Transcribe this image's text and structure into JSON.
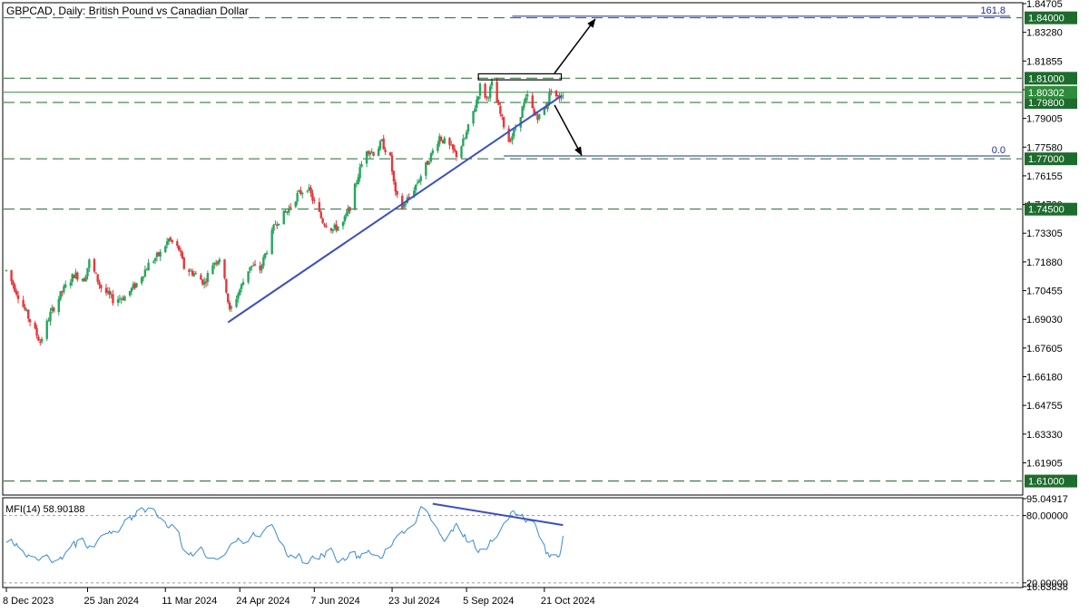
{
  "title": "GBPCAD, Daily:  British Pound vs Canadian Dollar",
  "colors": {
    "bull": "#26a65b",
    "bear": "#e8363b",
    "trendline": "#3b4fc4",
    "level_line": "#1e6b2e",
    "tag_bg": "#1e6b2e",
    "fib_line": "#1f2d9c",
    "mfi_line": "#3a8ad8",
    "current_price_line": "#2e8b3c"
  },
  "chart_data": [
    {
      "type": "candlestick",
      "symbol": "GBPCAD",
      "timeframe": "Daily",
      "description": "British Pound vs Canadian Dollar",
      "ylim": [
        1.6035,
        1.84705
      ],
      "y_tick_labels": [
        "1.84705",
        "1.83280",
        "1.81855",
        "1.80430",
        "1.79005",
        "1.77580",
        "1.76155",
        "1.74730",
        "1.73305",
        "1.71880",
        "1.70455",
        "1.69030",
        "1.67605",
        "1.66180",
        "1.64755",
        "1.63330",
        "1.61905"
      ],
      "x_tick_labels": [
        "8 Dec 2023",
        "25 Jan 2024",
        "11 Mar 2024",
        "24 Apr 2024",
        "7 Jun 2024",
        "23 Jul 2024",
        "5 Sep 2024",
        "21 Oct 2024"
      ],
      "horizontal_levels": [
        {
          "value": 1.84,
          "label": "1.84000"
        },
        {
          "value": 1.81,
          "label": "1.81000"
        },
        {
          "value": 1.798,
          "label": "1.79800"
        },
        {
          "value": 1.77,
          "label": "1.77000"
        },
        {
          "value": 1.745,
          "label": "1.74500"
        },
        {
          "value": 1.61,
          "label": "1.61000"
        }
      ],
      "current_price": {
        "value": 1.80302,
        "label": "1.80302"
      },
      "fibonacci": [
        {
          "label": "161.8",
          "value": 1.8408
        },
        {
          "label": "0.0",
          "value": 1.7714
        }
      ],
      "trendline": {
        "from": {
          "date": "2024-04-17",
          "price": 1.6888
        },
        "to": {
          "date": "2024-10-31",
          "price": 1.8012
        }
      },
      "range_box": {
        "from_date": "2024-09-12",
        "to_date": "2024-10-31",
        "low": 1.8092,
        "high": 1.8122
      },
      "arrows": [
        {
          "direction": "up",
          "from": {
            "date": "2024-10-27",
            "price": 1.8125
          },
          "to": {
            "date": "2024-11-20",
            "price": 1.8393
          }
        },
        {
          "direction": "down",
          "from": {
            "date": "2024-10-27",
            "price": 1.7967
          },
          "to": {
            "date": "2024-11-12",
            "price": 1.7718
          }
        }
      ],
      "ohlc": []
    },
    {
      "type": "line",
      "indicator": "MFI(14)",
      "current_value_label": "58.90188",
      "ylim": [
        16.63838,
        95.04917
      ],
      "y_tick_labels": [
        "95.04917",
        "80.00000",
        "20.00000",
        "16.63838"
      ],
      "levels": [
        80,
        20
      ],
      "divergence_line": {
        "from": {
          "date": "2024-08-16",
          "value": 90.5
        },
        "to": {
          "date": "2024-11-01",
          "value": 71.5
        }
      },
      "values": [
        56,
        59,
        55,
        53,
        55,
        52,
        48,
        45,
        43,
        45,
        44,
        43,
        41,
        40,
        41,
        43,
        45,
        43,
        40,
        38,
        39,
        41,
        43,
        41,
        44,
        47,
        52,
        55,
        57,
        52,
        58,
        60,
        57,
        53,
        51,
        53,
        52,
        55,
        58,
        60,
        62,
        64,
        64,
        66,
        64,
        66,
        65,
        67,
        70,
        72,
        76,
        79,
        76,
        80,
        79,
        84,
        87,
        86,
        83,
        85,
        87,
        86,
        84,
        80,
        78,
        78,
        74,
        70,
        69,
        71,
        72,
        67,
        65,
        57,
        51,
        49,
        45,
        47,
        44,
        45,
        47,
        52,
        50,
        46,
        43,
        42,
        42,
        42,
        41,
        41,
        42,
        45,
        47,
        50,
        53,
        55,
        57,
        60,
        58,
        57,
        55,
        57,
        60,
        62,
        65,
        62,
        61,
        64,
        66,
        68,
        70,
        72,
        69,
        66,
        62,
        58,
        53,
        48,
        44,
        43,
        45,
        42,
        44,
        46,
        43,
        38,
        37,
        39,
        42,
        44,
        42,
        41,
        46,
        45,
        43,
        48,
        51,
        48,
        44,
        40,
        38,
        42,
        40,
        41,
        43,
        47,
        48,
        42,
        44,
        42,
        46,
        47,
        49,
        47,
        45,
        45,
        44,
        42,
        42,
        45,
        50,
        52,
        54,
        58,
        60,
        62,
        66,
        64,
        66,
        68,
        69,
        72,
        74,
        79,
        84,
        88,
        85,
        83,
        80,
        76,
        74,
        68,
        64,
        62,
        59,
        57,
        64,
        67,
        66,
        71,
        73,
        64,
        61,
        63,
        57,
        56,
        58,
        52,
        49,
        47,
        50,
        50,
        50,
        53,
        58,
        57,
        61,
        64,
        67,
        70,
        73,
        77,
        82,
        84,
        84,
        81,
        80,
        81,
        77,
        74,
        76,
        75,
        74,
        71,
        66,
        61,
        54,
        46,
        47,
        43,
        45,
        45,
        43,
        44,
        51,
        62,
        69,
        73,
        82,
        84,
        84,
        83,
        79,
        76,
        77,
        72,
        69,
        68,
        63,
        64,
        63,
        64,
        68,
        71,
        70,
        73,
        75,
        76,
        75,
        69,
        69,
        74,
        70,
        75,
        74,
        71,
        65,
        60,
        61,
        60,
        56,
        58,
        56,
        51,
        52,
        52,
        50,
        50,
        58,
        64,
        60,
        52,
        55,
        52,
        54,
        61,
        68,
        80,
        82,
        79,
        78,
        71,
        70,
        69,
        71,
        73,
        68,
        62,
        64,
        62,
        65,
        62,
        66,
        66,
        66,
        71,
        73,
        70,
        69,
        70,
        69,
        64,
        62,
        64,
        65,
        66,
        67,
        66,
        68,
        70,
        75,
        74,
        73,
        72,
        66,
        66,
        65,
        59,
        58,
        59,
        60,
        58,
        55,
        54,
        54,
        60,
        64,
        64,
        66,
        69,
        68,
        68,
        68,
        69,
        71,
        73,
        72,
        69,
        68,
        70,
        68,
        63,
        57,
        59
      ]
    }
  ],
  "mfi_title": "MFI(14) 58.90188"
}
